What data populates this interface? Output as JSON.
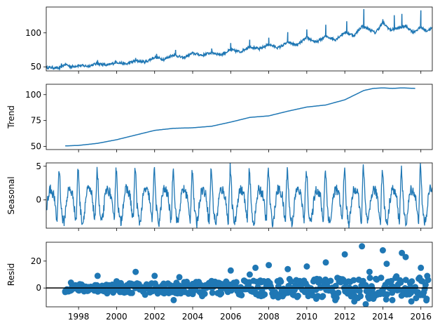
{
  "chart_data": [
    {
      "type": "line",
      "ylabel": "",
      "xlim": [
        1996.3,
        2016.6
      ],
      "ylim": [
        44,
        138
      ],
      "yticks": [
        50,
        100
      ],
      "xticks": [],
      "color": "#1f77b4",
      "series": [
        {
          "x": [
            1996.3,
            1996.6,
            1997.0,
            1997.3,
            1997.6,
            1998.0,
            1998.5,
            1999.0,
            1999.5,
            2000.0,
            2000.5,
            2001.0,
            2001.5,
            2002.0,
            2002.5,
            2003.0,
            2003.5,
            2004.0,
            2004.5,
            2005.0,
            2005.5,
            2006.0,
            2006.5,
            2007.0,
            2007.5,
            2008.0,
            2008.5,
            2009.0,
            2009.5,
            2010.0,
            2010.5,
            2011.0,
            2011.5,
            2012.0,
            2012.5,
            2012.9,
            2013.3,
            2013.6,
            2014.0,
            2014.4,
            2014.8,
            2015.2,
            2015.6,
            2016.0,
            2016.3,
            2016.6
          ],
          "y": [
            49,
            49,
            48,
            54,
            50,
            52,
            51,
            55,
            52,
            57,
            54,
            59,
            57,
            64,
            61,
            68,
            63,
            70,
            67,
            71,
            68,
            75,
            72,
            80,
            76,
            83,
            78,
            86,
            82,
            93,
            86,
            95,
            90,
            101,
            96,
            110,
            105,
            100,
            115,
            104,
            107,
            110,
            101,
            108,
            103,
            107
          ]
        }
      ],
      "peaks": [
        [
          1997.1,
          55
        ],
        [
          1999.0,
          60
        ],
        [
          2001.0,
          63
        ],
        [
          2002.1,
          69
        ],
        [
          2003.1,
          75
        ],
        [
          2005.0,
          77
        ],
        [
          2006.0,
          85
        ],
        [
          2007.0,
          90
        ],
        [
          2008.0,
          93
        ],
        [
          2009.0,
          101
        ],
        [
          2010.0,
          105
        ],
        [
          2011.0,
          112
        ],
        [
          2012.1,
          117
        ],
        [
          2013.0,
          135
        ],
        [
          2014.0,
          120
        ],
        [
          2014.6,
          126
        ],
        [
          2015.0,
          128
        ],
        [
          2016.0,
          133
        ]
      ]
    },
    {
      "type": "line",
      "ylabel": "Trend",
      "xlim": [
        1996.3,
        2016.6
      ],
      "ylim": [
        47,
        110
      ],
      "yticks": [
        50,
        75,
        100
      ],
      "xticks": [],
      "color": "#1f77b4",
      "series": [
        {
          "x": [
            1997.3,
            1998.0,
            1999.0,
            2000.0,
            2001.0,
            2002.0,
            2003.0,
            2004.0,
            2005.0,
            2006.0,
            2007.0,
            2008.0,
            2009.0,
            2010.0,
            2011.0,
            2012.0,
            2013.0,
            2013.5,
            2014.0,
            2014.5,
            2015.0,
            2015.7
          ],
          "y": [
            50.5,
            51.0,
            53.0,
            56.5,
            61.0,
            65.5,
            67.5,
            68.0,
            69.5,
            73.5,
            78.0,
            79.5,
            84.0,
            88.0,
            90.0,
            95.0,
            104.0,
            106.0,
            106.5,
            106.0,
            106.5,
            106.0
          ]
        }
      ]
    },
    {
      "type": "line",
      "ylabel": "Seasonal",
      "xlim": [
        1996.3,
        2016.6
      ],
      "ylim": [
        -4.2,
        5.5
      ],
      "yticks": [
        0,
        5
      ],
      "xticks": [],
      "color": "#1f77b4",
      "pattern": {
        "phases": [
          0.0,
          0.05,
          0.12,
          0.2,
          0.28,
          0.35,
          0.45,
          0.55,
          0.62,
          0.7,
          0.75,
          0.8,
          0.86,
          0.9,
          0.95,
          1.0
        ],
        "values": [
          3.0,
          -0.5,
          -2.5,
          -3.5,
          -2.0,
          0.0,
          1.5,
          1.5,
          1.0,
          0.5,
          -1.0,
          -2.5,
          -3.0,
          1.0,
          5.0,
          3.0
        ]
      }
    },
    {
      "type": "scatter",
      "ylabel": "Resid",
      "xlim": [
        1996.3,
        2016.6
      ],
      "ylim": [
        -14,
        34
      ],
      "yticks": [
        0,
        20
      ],
      "xticks": [
        1998,
        2000,
        2002,
        2004,
        2006,
        2008,
        2010,
        2012,
        2014,
        2016
      ],
      "xtick_labels": [
        "1998",
        "2000",
        "2002",
        "2004",
        "2006",
        "2008",
        "2010",
        "2012",
        "2014",
        "2016"
      ],
      "color": "#1f77b4",
      "baseline": 0,
      "points": [
        [
          1997.3,
          -3
        ],
        [
          1997.6,
          4
        ],
        [
          1998.0,
          2
        ],
        [
          1998.5,
          -2
        ],
        [
          1999.0,
          9
        ],
        [
          1999.5,
          -4
        ],
        [
          2000.0,
          5
        ],
        [
          2000.5,
          -3
        ],
        [
          2001.0,
          12
        ],
        [
          2001.5,
          -5
        ],
        [
          2002.0,
          9
        ],
        [
          2002.5,
          -4
        ],
        [
          2003.0,
          -9
        ],
        [
          2003.3,
          8
        ],
        [
          2003.6,
          -3
        ],
        [
          2004.0,
          3
        ],
        [
          2004.5,
          -6
        ],
        [
          2005.0,
          4
        ],
        [
          2005.5,
          -4
        ],
        [
          2006.0,
          13
        ],
        [
          2006.5,
          -5
        ],
        [
          2007.0,
          10
        ],
        [
          2007.3,
          15
        ],
        [
          2007.6,
          -6
        ],
        [
          2008.0,
          17
        ],
        [
          2008.5,
          -7
        ],
        [
          2009.0,
          14
        ],
        [
          2009.5,
          -6
        ],
        [
          2010.0,
          16
        ],
        [
          2010.5,
          -8
        ],
        [
          2011.0,
          19
        ],
        [
          2011.5,
          -9
        ],
        [
          2012.0,
          25
        ],
        [
          2012.5,
          -10
        ],
        [
          2012.9,
          31
        ],
        [
          2013.1,
          -12
        ],
        [
          2013.3,
          12
        ],
        [
          2013.5,
          -8
        ],
        [
          2014.0,
          28
        ],
        [
          2014.2,
          18
        ],
        [
          2014.5,
          -9
        ],
        [
          2015.0,
          26
        ],
        [
          2015.2,
          23
        ],
        [
          2015.5,
          -10
        ],
        [
          2016.0,
          15
        ],
        [
          2016.3,
          -8
        ]
      ]
    }
  ]
}
